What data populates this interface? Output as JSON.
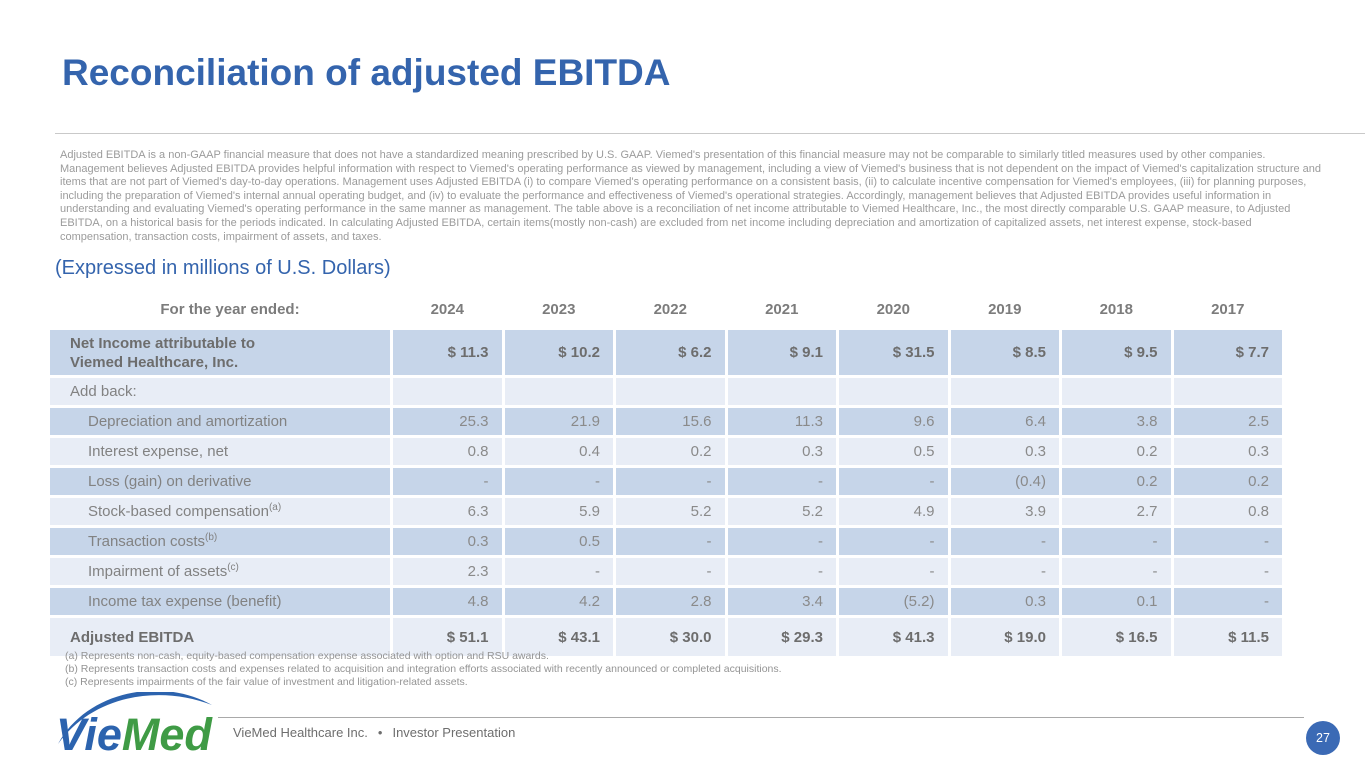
{
  "slide": {
    "title": "Reconciliation of adjusted EBITDA",
    "disclaimer": "Adjusted EBITDA is a non-GAAP financial measure that does not have a standardized meaning prescribed by U.S. GAAP. Viemed's presentation of this financial measure may not be comparable to similarly titled measures used by other companies. Management believes Adjusted EBITDA provides helpful information with respect to Viemed's operating performance as viewed by management, including a view of Viemed's business that is not dependent on the impact of Viemed's capitalization structure and items that are not part of Viemed's day-to-day operations. Management uses Adjusted EBITDA (i) to compare Viemed's operating performance on a consistent basis, (ii) to calculate incentive compensation for Viemed's employees, (iii) for planning purposes, including the preparation of Viemed's internal annual operating budget, and (iv) to evaluate the performance and effectiveness of Viemed's operational strategies. Accordingly, management believes that Adjusted EBITDA provides useful information in understanding and evaluating Viemed's operating performance in the same manner as management. The table above is a reconciliation of net income attributable to Viemed Healthcare, Inc., the most directly comparable U.S. GAAP measure, to Adjusted EBITDA, on a historical basis for the periods indicated. In calculating Adjusted EBITDA, certain items(mostly non-cash) are excluded from net income including depreciation and amortization of capitalized assets, net interest expense, stock-based compensation, transaction costs, impairment of assets, and taxes.",
    "subtitle": "(Expressed in millions of U.S. Dollars)"
  },
  "table": {
    "header": {
      "label": "For the year ended:",
      "years": [
        "2024",
        "2023",
        "2022",
        "2021",
        "2020",
        "2019",
        "2018",
        "2017"
      ]
    },
    "rows": [
      {
        "label": "Net Income attributable to\nViemed Healthcare, Inc.",
        "sup": "",
        "style": "net",
        "indent": false,
        "values": [
          "$ 11.3",
          "$ 10.2",
          "$ 6.2",
          "$ 9.1",
          "$ 31.5",
          "$ 8.5",
          "$ 9.5",
          "$ 7.7"
        ]
      },
      {
        "label": "Add back:",
        "sup": "",
        "style": "addback",
        "indent": false,
        "values": [
          "",
          "",
          "",
          "",
          "",
          "",
          "",
          ""
        ]
      },
      {
        "label": "Depreciation and amortization",
        "sup": "",
        "style": "dark",
        "indent": true,
        "values": [
          "25.3",
          "21.9",
          "15.6",
          "11.3",
          "9.6",
          "6.4",
          "3.8",
          "2.5"
        ]
      },
      {
        "label": "Interest expense, net",
        "sup": "",
        "style": "light",
        "indent": true,
        "values": [
          "0.8",
          "0.4",
          "0.2",
          "0.3",
          "0.5",
          "0.3",
          "0.2",
          "0.3"
        ]
      },
      {
        "label": "Loss (gain) on derivative",
        "sup": "",
        "style": "dark",
        "indent": true,
        "values": [
          "-",
          "-",
          "-",
          "-",
          "-",
          "(0.4)",
          "0.2",
          "0.2"
        ]
      },
      {
        "label": "Stock-based compensation",
        "sup": "(a)",
        "style": "light",
        "indent": true,
        "values": [
          "6.3",
          "5.9",
          "5.2",
          "5.2",
          "4.9",
          "3.9",
          "2.7",
          "0.8"
        ]
      },
      {
        "label": "Transaction costs",
        "sup": "(b)",
        "style": "dark",
        "indent": true,
        "values": [
          "0.3",
          "0.5",
          "-",
          "-",
          "-",
          "-",
          "-",
          "-"
        ]
      },
      {
        "label": "Impairment of assets",
        "sup": "(c)",
        "style": "light",
        "indent": true,
        "values": [
          "2.3",
          "-",
          "-",
          "-",
          "-",
          "-",
          "-",
          "-"
        ]
      },
      {
        "label": "Income tax expense (benefit)",
        "sup": "",
        "style": "dark",
        "indent": true,
        "values": [
          "4.8",
          "4.2",
          "2.8",
          "3.4",
          "(5.2)",
          "0.3",
          "0.1",
          "-"
        ]
      },
      {
        "label": "Adjusted EBITDA",
        "sup": "",
        "style": "total",
        "indent": false,
        "values": [
          "$ 51.1",
          "$ 43.1",
          "$ 30.0",
          "$ 29.3",
          "$ 41.3",
          "$ 19.0",
          "$ 16.5",
          "$ 11.5"
        ]
      }
    ]
  },
  "footnotes": [
    "(a) Represents non-cash, equity-based compensation expense associated with option and RSU awards.",
    "(b) Represents transaction costs and expenses related to acquisition and integration efforts associated with recently announced or completed acquisitions.",
    "(c) Represents impairments of the fair value of investment and litigation-related assets."
  ],
  "footer": {
    "logo_vie": "Vie",
    "logo_med": "Med",
    "company": "VieMed Healthcare Inc.",
    "separator": "•",
    "label": "Investor Presentation",
    "page": "27"
  },
  "colors": {
    "accent": "#3464ad",
    "row_dark": "#c6d5e9",
    "row_light": "#e8edf6",
    "logo_green": "#3f9b45",
    "badge": "#3b6ab5"
  }
}
